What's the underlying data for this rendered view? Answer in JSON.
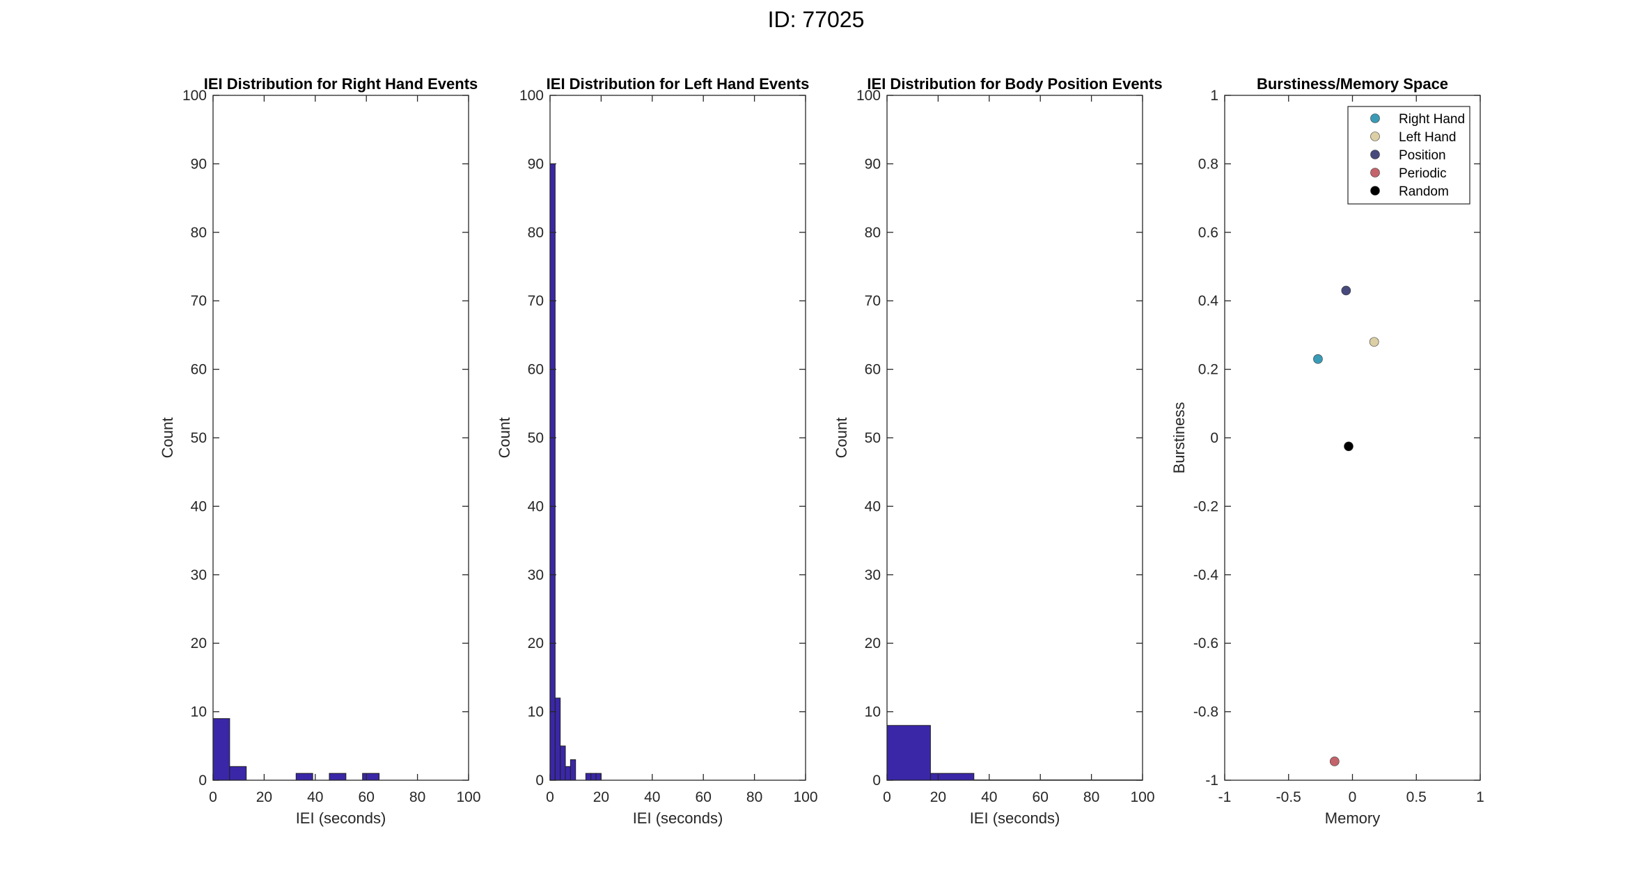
{
  "figure": {
    "title": "ID: 77025"
  },
  "chart_data": [
    {
      "type": "bar",
      "title": "IEI Distribution for Right Hand Events",
      "xlabel": "IEI (seconds)",
      "ylabel": "Count",
      "xlim": [
        0,
        100
      ],
      "ylim": [
        0,
        100
      ],
      "xticks": [
        0,
        20,
        40,
        60,
        80,
        100
      ],
      "yticks": [
        0,
        10,
        20,
        30,
        40,
        50,
        60,
        70,
        80,
        90,
        100
      ],
      "bars": [
        {
          "x0": 0,
          "x1": 6.5,
          "value": 9
        },
        {
          "x0": 6.5,
          "x1": 13,
          "value": 2
        },
        {
          "x0": 32.5,
          "x1": 39,
          "value": 1
        },
        {
          "x0": 45.5,
          "x1": 52,
          "value": 1
        },
        {
          "x0": 58.5,
          "x1": 65,
          "value": 1
        }
      ],
      "bar_color": "#3a27a8"
    },
    {
      "type": "bar",
      "title": "IEI Distribution for Left Hand Events",
      "xlabel": "IEI (seconds)",
      "ylabel": "Count",
      "xlim": [
        0,
        100
      ],
      "ylim": [
        0,
        100
      ],
      "xticks": [
        0,
        20,
        40,
        60,
        80,
        100
      ],
      "yticks": [
        0,
        10,
        20,
        30,
        40,
        50,
        60,
        70,
        80,
        90,
        100
      ],
      "bars": [
        {
          "x0": 0,
          "x1": 2,
          "value": 90
        },
        {
          "x0": 2,
          "x1": 4,
          "value": 12
        },
        {
          "x0": 4,
          "x1": 6,
          "value": 5
        },
        {
          "x0": 6,
          "x1": 8,
          "value": 2
        },
        {
          "x0": 8,
          "x1": 10,
          "value": 3
        },
        {
          "x0": 14,
          "x1": 16,
          "value": 1
        },
        {
          "x0": 16,
          "x1": 18,
          "value": 1
        },
        {
          "x0": 18,
          "x1": 20,
          "value": 1
        }
      ],
      "bar_color": "#3a27a8"
    },
    {
      "type": "bar",
      "title": "IEI Distribution for Body Position Events",
      "xlabel": "IEI (seconds)",
      "ylabel": "Count",
      "xlim": [
        0,
        100
      ],
      "ylim": [
        0,
        100
      ],
      "xticks": [
        0,
        20,
        40,
        60,
        80,
        100
      ],
      "yticks": [
        0,
        10,
        20,
        30,
        40,
        50,
        60,
        70,
        80,
        90,
        100
      ],
      "bars": [
        {
          "x0": 0,
          "x1": 17,
          "value": 8
        },
        {
          "x0": 17,
          "x1": 34,
          "value": 1
        },
        {
          "x0": 34,
          "x1": 51,
          "value": 0
        },
        {
          "x0": 51,
          "x1": 68,
          "value": 0
        },
        {
          "x0": 68,
          "x1": 85,
          "value": 0
        },
        {
          "x0": 85,
          "x1": 100,
          "value": 0
        }
      ],
      "bar_color": "#3a27a8"
    },
    {
      "type": "scatter",
      "title": "Burstiness/Memory Space",
      "xlabel": "Memory",
      "ylabel": "Burstiness",
      "xlim": [
        -1,
        1
      ],
      "ylim": [
        -1,
        1
      ],
      "xticks": [
        -1,
        -0.5,
        0,
        0.5,
        1
      ],
      "xtick_labels": [
        "-1",
        "-0.5",
        "0",
        "0.5",
        "1"
      ],
      "yticks": [
        -1,
        -0.8,
        -0.6,
        -0.4,
        -0.2,
        0,
        0.2,
        0.4,
        0.6,
        0.8,
        1
      ],
      "ytick_labels": [
        "-1",
        "-0.8",
        "-0.6",
        "-0.4",
        "-0.2",
        "0",
        "0.2",
        "0.4",
        "0.6",
        "0.8",
        "1"
      ],
      "legend_position": "top-right",
      "series": [
        {
          "name": "Right Hand",
          "x": -0.27,
          "y": 0.23,
          "color": "#3a9bb6"
        },
        {
          "name": "Left Hand",
          "x": 0.17,
          "y": 0.28,
          "color": "#dccfa6"
        },
        {
          "name": "Position",
          "x": -0.05,
          "y": 0.43,
          "color": "#464a7c"
        },
        {
          "name": "Periodic",
          "x": -0.14,
          "y": -0.945,
          "color": "#c4636b"
        },
        {
          "name": "Random",
          "x": -0.03,
          "y": -0.025,
          "color": "#000000"
        }
      ]
    }
  ]
}
